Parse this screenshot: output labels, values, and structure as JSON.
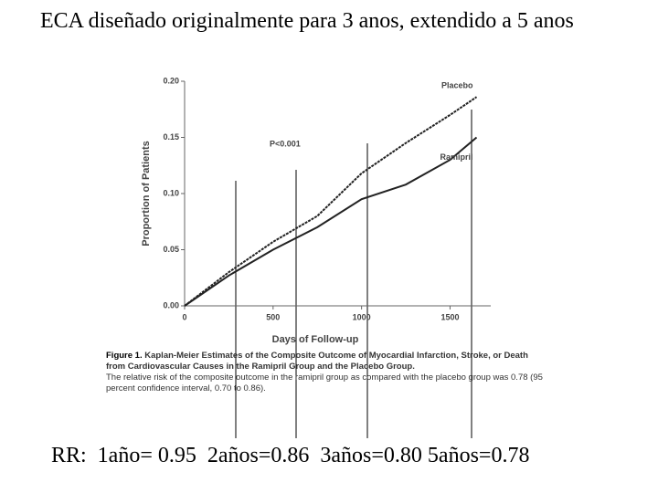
{
  "title": "ECA diseñado originalmente para 3 anos, extendido a 5 anos",
  "chart_data": {
    "type": "line",
    "xlabel": "Days of Follow-up",
    "ylabel": "Proportion of Patients",
    "x": [
      0,
      250,
      500,
      750,
      1000,
      1250,
      1500,
      1650
    ],
    "series": [
      {
        "name": "Placebo",
        "color": "#222222",
        "values": [
          0,
          0.03,
          0.057,
          0.08,
          0.118,
          0.145,
          0.17,
          0.186
        ]
      },
      {
        "name": "Ramipril",
        "color": "#222222",
        "values": [
          0,
          0.027,
          0.05,
          0.07,
          0.095,
          0.108,
          0.13,
          0.15
        ]
      }
    ],
    "xlim": [
      0,
      1730
    ],
    "ylim": [
      0,
      0.2
    ],
    "xticks": [
      0,
      500,
      1000,
      1500
    ],
    "yticks": [
      {
        "value": 0,
        "label": "0.00"
      },
      {
        "value": 0.05,
        "label": "0.05"
      },
      {
        "value": 0.1,
        "label": "0.10"
      },
      {
        "value": 0.15,
        "label": "0.15"
      },
      {
        "value": 0.2,
        "label": "0.20"
      }
    ],
    "annotations": [
      "P<0.001"
    ]
  },
  "caption": {
    "label": "Figure 1.",
    "text": "Kaplan-Meier Estimates of the Composite Outcome of Myocardial Infarction, Stroke, or Death from Cardiovascular Causes in the Ramipril Group and the Placebo Group.",
    "note": "The relative risk of the composite outcome in the ramipril group as compared with the placebo group was 0.78 (95 percent confidence interval, 0.70 to 0.86)."
  },
  "footer": "RR:  1año= 0.95  2años=0.86  3años=0.80 5años=0.78"
}
